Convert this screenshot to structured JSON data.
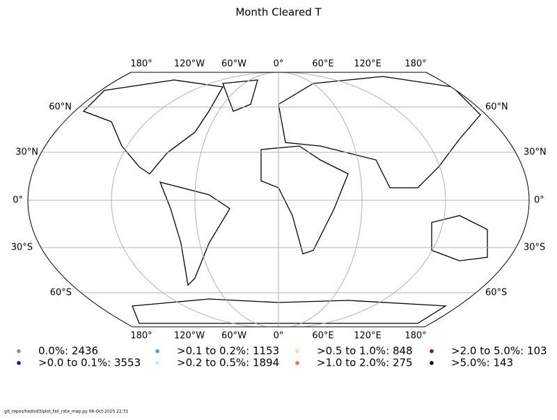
{
  "title": "Month Cleared T",
  "map": {
    "lon_labels_top": [
      "180°",
      "120°W",
      "60°W",
      "0°",
      "60°E",
      "120°E",
      "180°"
    ],
    "lon_labels_bottom": [
      "180°",
      "120°W",
      "60°W",
      "0°",
      "60°E",
      "120°E",
      "180°"
    ],
    "lat_labels_left": [
      "60°N",
      "30°N",
      "0°",
      "30°S",
      "60°S"
    ],
    "lat_labels_right": [
      "60°N",
      "30°N",
      "0°",
      "30°S",
      "60°S"
    ]
  },
  "legend": [
    {
      "label": "0.0%: 2436",
      "color": "#8c8c8c"
    },
    {
      "label": ">0.0 to 0.1%: 3553",
      "color": "#2a00d5"
    },
    {
      "label": ">0.1 to 0.2%: 1153",
      "color": "#3d9be9"
    },
    {
      "label": ">0.2 to 0.5%: 1894",
      "color": "#adf5f5"
    },
    {
      "label": ">0.5 to 1.0%: 848",
      "color": "#fedb9b"
    },
    {
      "label": ">1.0 to 2.0%: 275",
      "color": "#f26b5b"
    },
    {
      "label": ">2.0 to 5.0%: 103",
      "color": "#9a0020"
    },
    {
      "label": ">5.0%: 143",
      "color": "#000000"
    }
  ],
  "footer": "git_repos/hadisd3/plot_fail_rate_map.py   06-Oct-2025 22:31"
}
